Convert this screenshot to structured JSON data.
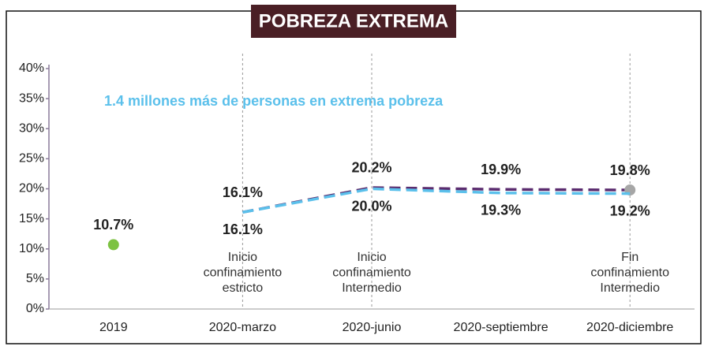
{
  "chart_data": {
    "type": "line",
    "title": "POBREZA EXTREMA",
    "annotation": "1.4 millones más de personas en extrema pobreza",
    "categories": [
      "2019",
      "2020-marzo",
      "2020-junio",
      "2020-septiembre",
      "2020-diciembre"
    ],
    "series": [
      {
        "color": "#7dc242",
        "marker": true,
        "label_pos": "above",
        "values": [
          10.7,
          null,
          null,
          null,
          null
        ],
        "value_labels": [
          "10.7%",
          null,
          null,
          null,
          null
        ]
      },
      {
        "color": "#5b2c6f",
        "dashed": true,
        "label_pos": "above",
        "end_marker_color": "#a6a6a6",
        "values": [
          null,
          16.1,
          20.2,
          19.9,
          19.8
        ],
        "value_labels": [
          null,
          "16.1%",
          "20.2%",
          "19.9%",
          "19.8%"
        ]
      },
      {
        "color": "#5bc0eb",
        "dashed": true,
        "label_pos": "below",
        "values": [
          null,
          16.1,
          20.0,
          19.3,
          19.2
        ],
        "value_labels": [
          null,
          "16.1%",
          "20.0%",
          "19.3%",
          "19.2%"
        ]
      }
    ],
    "ylim": [
      0,
      40
    ],
    "yticks": [
      {
        "value": 0,
        "label": "0%"
      },
      {
        "value": 5,
        "label": "5%"
      },
      {
        "value": 10,
        "label": "10%"
      },
      {
        "value": 15,
        "label": "15%"
      },
      {
        "value": 20,
        "label": "20%"
      },
      {
        "value": 25,
        "label": "25%"
      },
      {
        "value": 30,
        "label": "30%"
      },
      {
        "value": 35,
        "label": "35%"
      },
      {
        "value": 40,
        "label": "40%"
      }
    ],
    "events": [
      {
        "category": 1,
        "lines": [
          "Inicio",
          "confinamiento",
          "estricto"
        ]
      },
      {
        "category": 2,
        "lines": [
          "Inicio",
          "confinamiento",
          "Intermedio"
        ]
      },
      {
        "category": 4,
        "lines": [
          "Fin",
          "confinamiento",
          "Intermedio"
        ]
      }
    ]
  }
}
